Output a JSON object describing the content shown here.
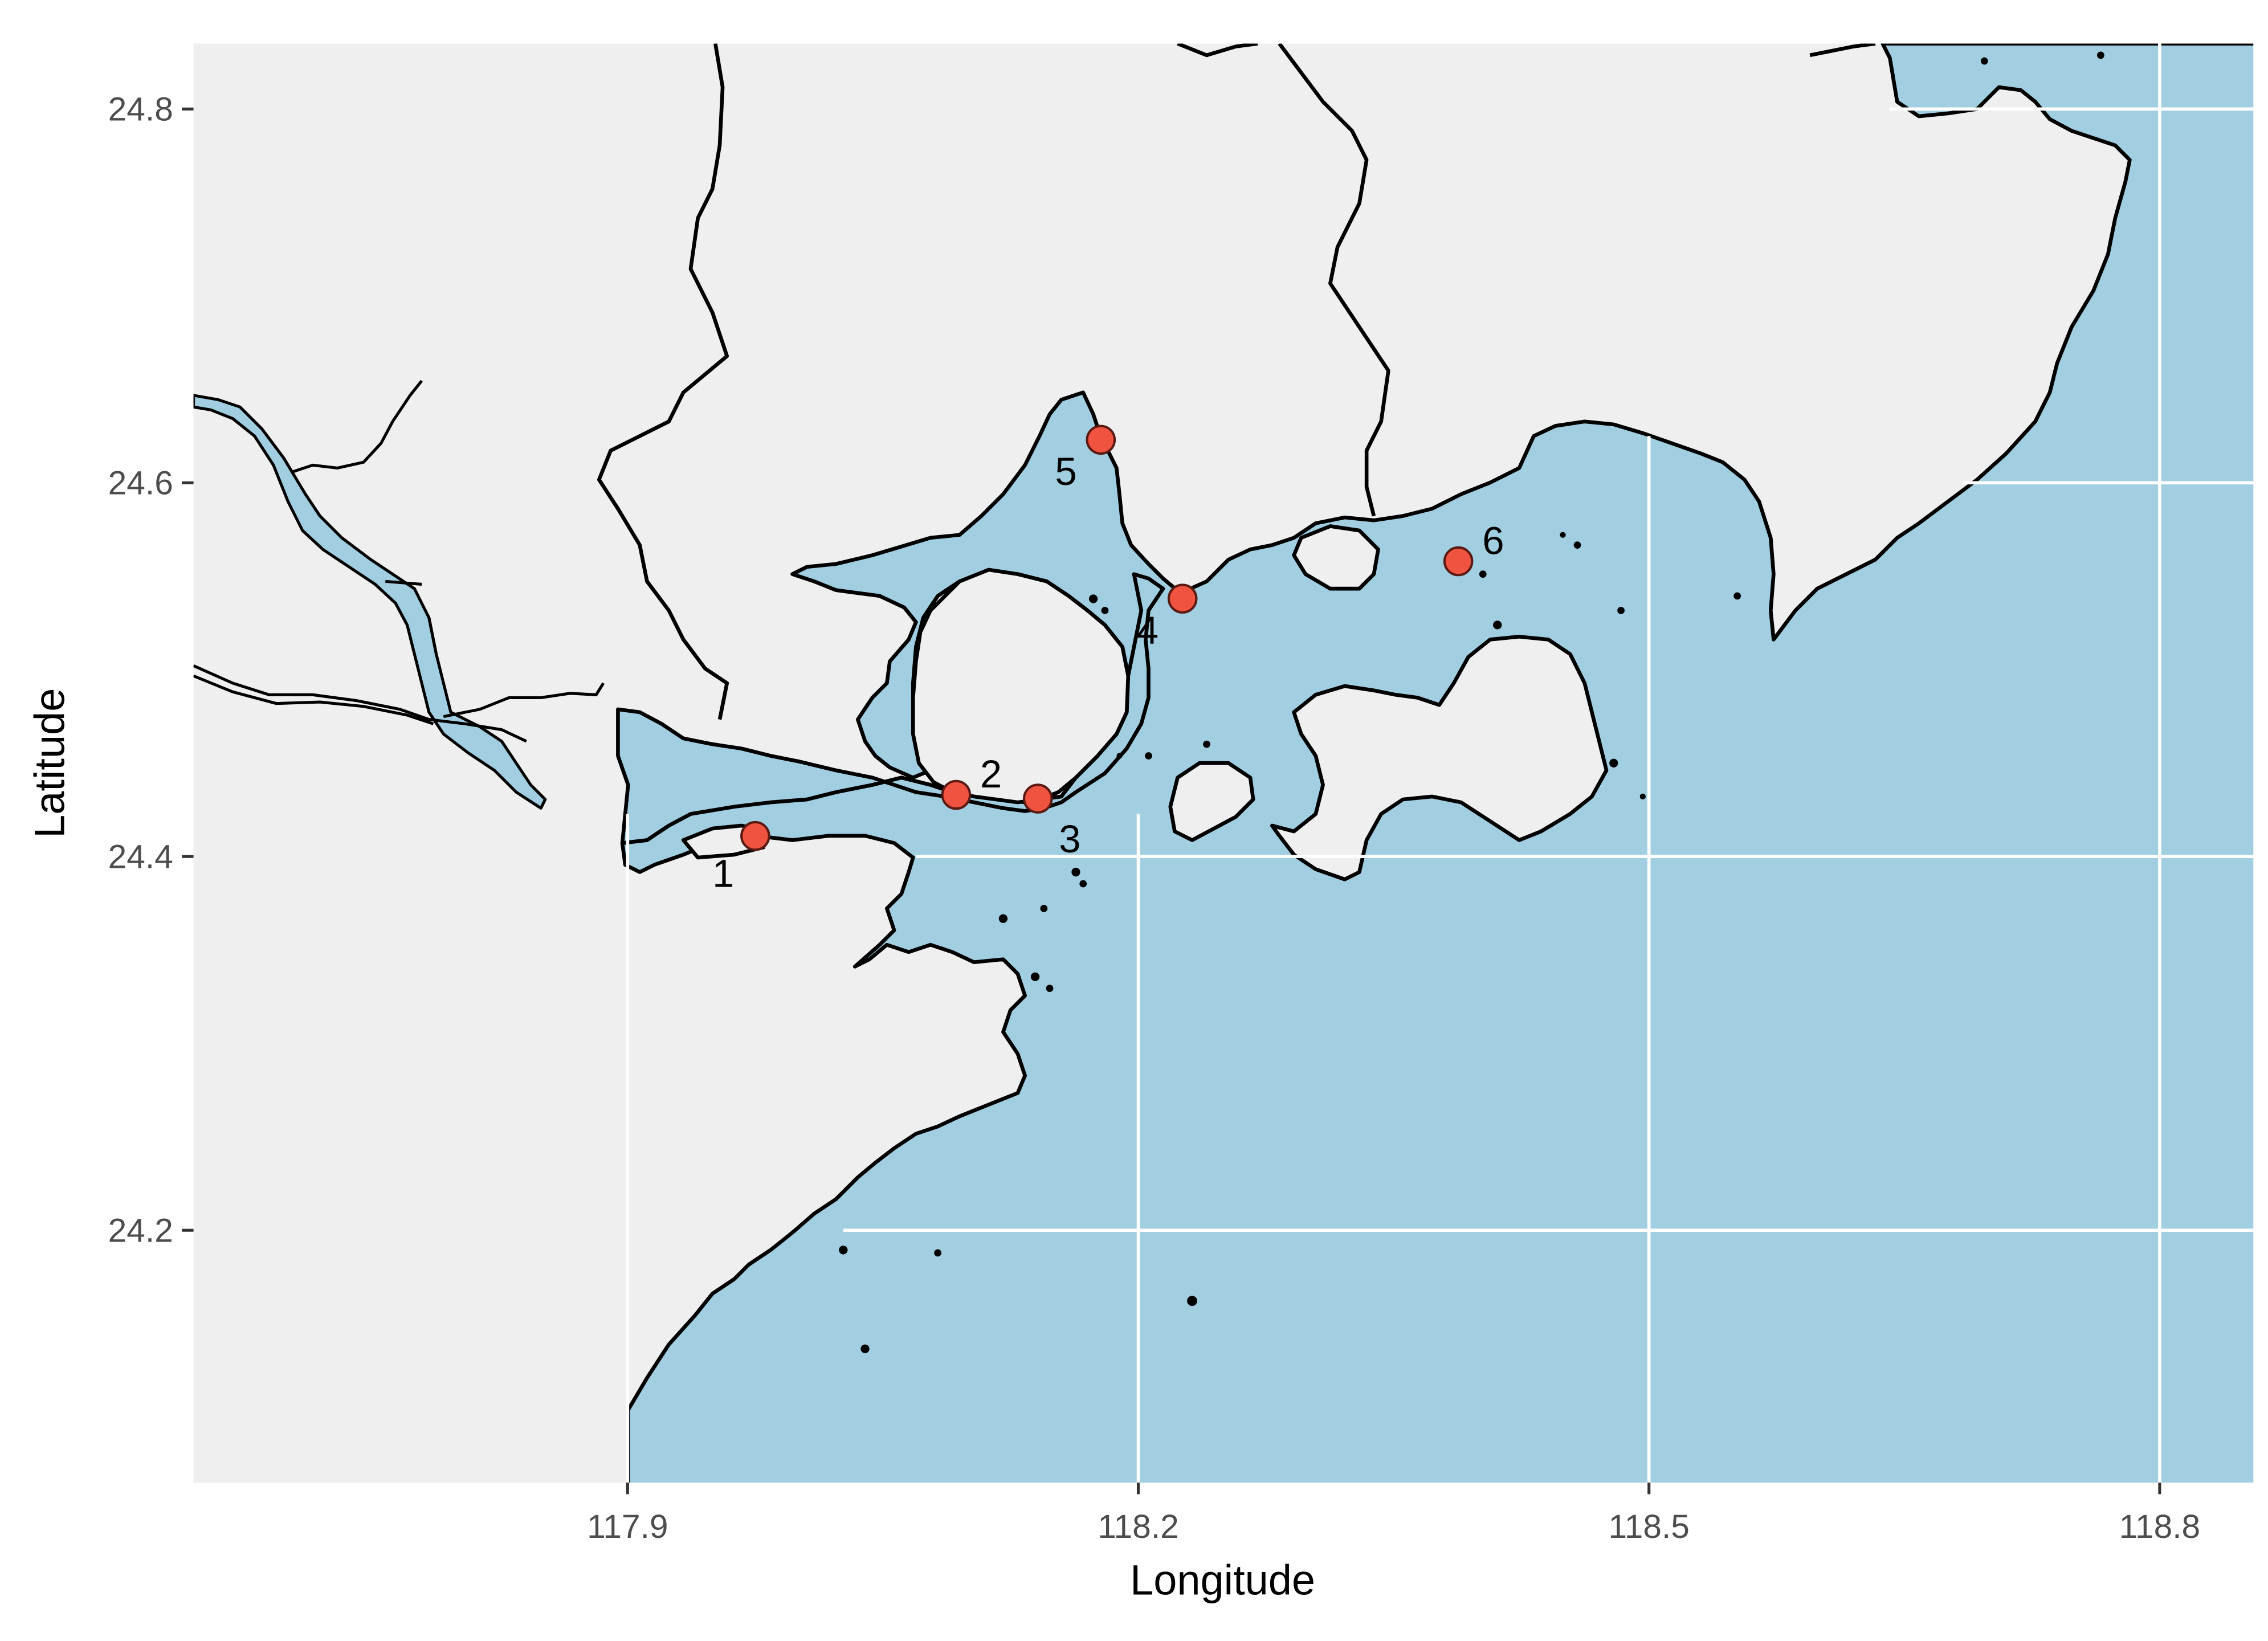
{
  "map": {
    "xlabel": "Longitude",
    "ylabel": "Latitude",
    "x_ticks": [
      "117.9",
      "118.2",
      "118.5",
      "118.8"
    ],
    "y_ticks": [
      "24.8",
      "24.6",
      "24.4",
      "24.2"
    ],
    "xlim": [
      117.645,
      118.855
    ],
    "ylim": [
      24.065,
      24.835
    ],
    "colors": {
      "land": "#efefef",
      "sea": "#a1cfe1",
      "coastline": "#000000",
      "gridline": "#ffffff",
      "station_fill": "#f05441",
      "station_stroke": "#5a1a12"
    },
    "stations": [
      {
        "label": "1",
        "lon": 117.975,
        "lat": 24.411
      },
      {
        "label": "2",
        "lon": 118.093,
        "lat": 24.433
      },
      {
        "label": "3",
        "lon": 118.141,
        "lat": 24.431
      },
      {
        "label": "4",
        "lon": 118.226,
        "lat": 24.538
      },
      {
        "label": "5",
        "lon": 118.178,
        "lat": 24.623
      },
      {
        "label": "6",
        "lon": 118.388,
        "lat": 24.558
      }
    ]
  }
}
